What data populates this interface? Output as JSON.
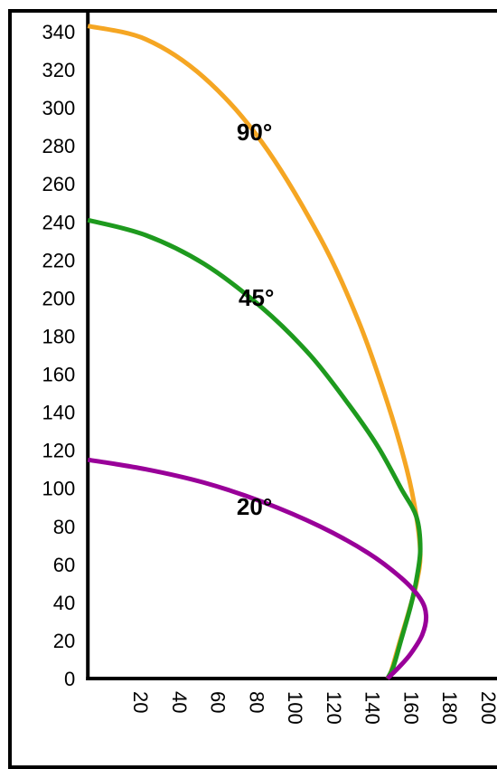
{
  "chart_data": {
    "type": "line",
    "title": "",
    "xlabel": "",
    "ylabel": "",
    "xlim": [
      0,
      210
    ],
    "ylim": [
      0,
      345
    ],
    "x_ticks": [
      20,
      40,
      60,
      80,
      100,
      120,
      140,
      160,
      180,
      200
    ],
    "y_ticks": [
      0,
      20,
      40,
      60,
      80,
      100,
      120,
      140,
      160,
      180,
      200,
      220,
      240,
      260,
      280,
      300,
      320,
      340
    ],
    "grid": false,
    "legend": "none",
    "series": [
      {
        "label": "90°",
        "color": "#f5a623",
        "label_at": [
          77,
          283
        ],
        "points": [
          [
            0,
            343
          ],
          [
            30,
            336
          ],
          [
            60,
            316
          ],
          [
            90,
            282
          ],
          [
            120,
            232
          ],
          [
            140,
            188
          ],
          [
            155,
            145
          ],
          [
            165,
            110
          ],
          [
            170,
            85
          ],
          [
            172,
            65
          ],
          [
            170,
            50
          ],
          [
            166,
            35
          ],
          [
            161,
            18
          ],
          [
            157,
            4
          ],
          [
            155,
            0
          ]
        ]
      },
      {
        "label": "45°",
        "color": "#1e9a1e",
        "label_at": [
          78,
          196
        ],
        "points": [
          [
            0,
            241
          ],
          [
            30,
            233
          ],
          [
            60,
            218
          ],
          [
            90,
            195
          ],
          [
            115,
            170
          ],
          [
            135,
            144
          ],
          [
            150,
            122
          ],
          [
            162,
            100
          ],
          [
            170,
            85
          ],
          [
            172,
            68
          ],
          [
            170,
            52
          ],
          [
            167,
            38
          ],
          [
            162,
            20
          ],
          [
            158,
            6
          ],
          [
            155,
            0
          ]
        ]
      },
      {
        "label": "20°",
        "color": "#990099",
        "label_at": [
          77,
          86
        ],
        "points": [
          [
            0,
            115
          ],
          [
            30,
            110
          ],
          [
            60,
            103
          ],
          [
            90,
            93
          ],
          [
            120,
            80
          ],
          [
            145,
            66
          ],
          [
            162,
            53
          ],
          [
            172,
            42
          ],
          [
            175,
            33
          ],
          [
            173,
            23
          ],
          [
            167,
            13
          ],
          [
            161,
            6
          ],
          [
            155,
            0
          ]
        ]
      }
    ]
  }
}
